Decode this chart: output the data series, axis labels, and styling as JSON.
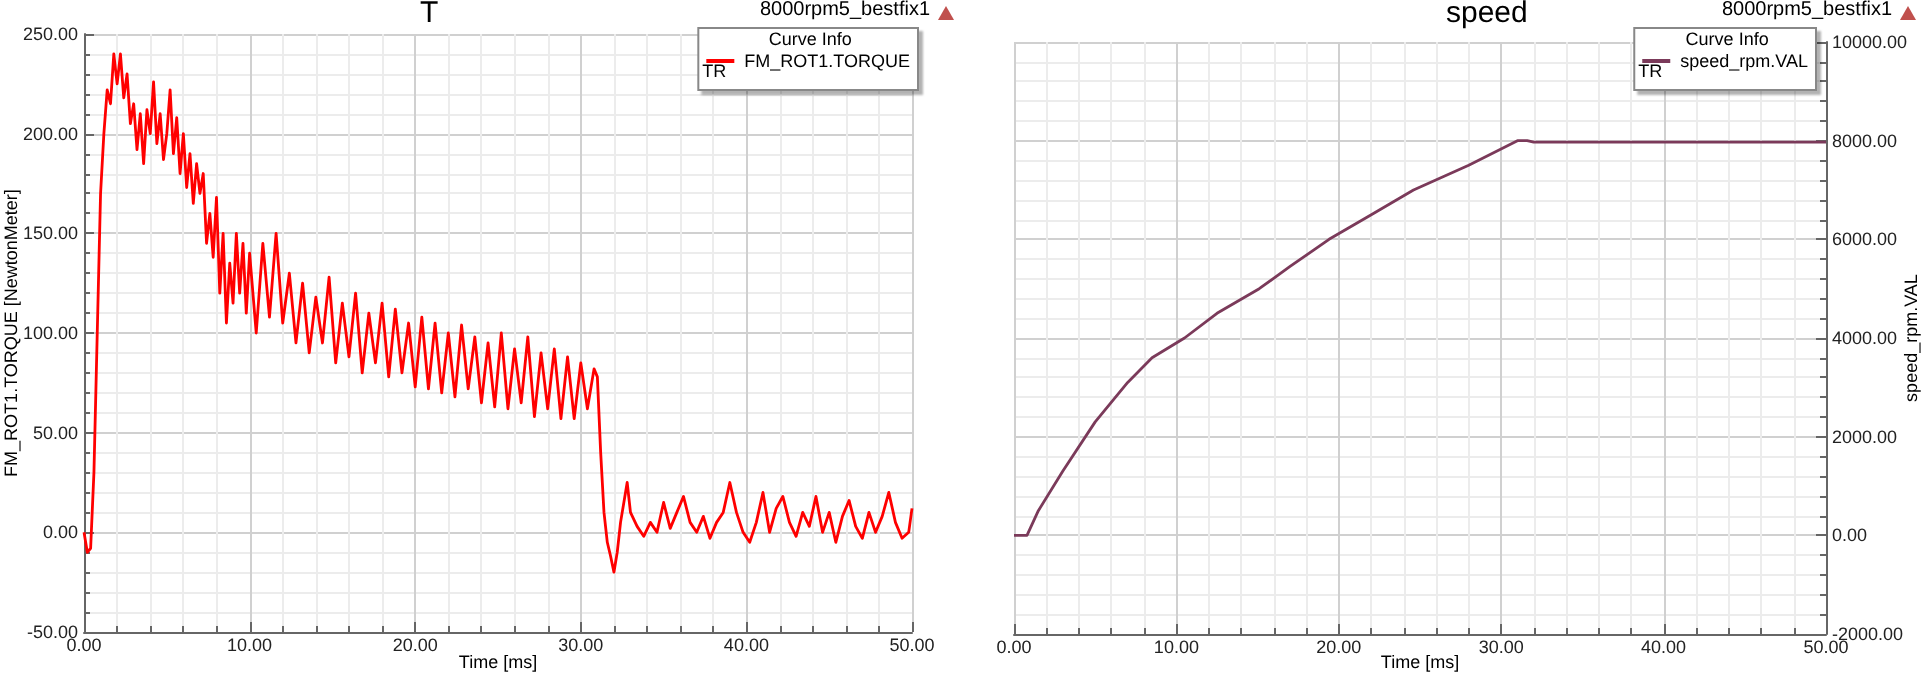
{
  "chart_data": [
    {
      "type": "line",
      "title": "T",
      "subtitle": "8000rpm5_bestfix1",
      "xlabel": "Time [ms]",
      "ylabel": "FM_ROT1.TORQUE [NewtonMeter]",
      "legend_title": "Curve Info",
      "annotations": [
        "TR"
      ],
      "legend": "top right",
      "grid": true,
      "marker": "none",
      "line_style": "solid",
      "xlim": [
        0,
        50
      ],
      "ylim": [
        -50,
        250
      ],
      "xticks": [
        {
          "value": 0,
          "label": "0.00"
        },
        {
          "value": 10,
          "label": "10.00"
        },
        {
          "value": 20,
          "label": "20.00"
        },
        {
          "value": 30,
          "label": "30.00"
        },
        {
          "value": 40,
          "label": "40.00"
        },
        {
          "value": 50,
          "label": "50.00"
        }
      ],
      "yticks": [
        {
          "value": -50,
          "label": "-50.00"
        },
        {
          "value": 0,
          "label": "0.00"
        },
        {
          "value": 50,
          "label": "50.00"
        },
        {
          "value": 100,
          "label": "100.00"
        },
        {
          "value": 150,
          "label": "150.00"
        },
        {
          "value": 200,
          "label": "200.00"
        },
        {
          "value": 250,
          "label": "250.00"
        }
      ],
      "x": [
        0,
        0.2,
        0.4,
        0.6,
        0.8,
        1.0,
        1.2,
        1.4,
        1.6,
        1.8,
        2.0,
        2.2,
        2.4,
        2.6,
        2.8,
        3.0,
        3.2,
        3.4,
        3.6,
        3.8,
        4.0,
        4.2,
        4.4,
        4.6,
        4.8,
        5.0,
        5.2,
        5.4,
        5.6,
        5.8,
        6.0,
        6.2,
        6.4,
        6.6,
        6.8,
        7.0,
        7.2,
        7.4,
        7.6,
        7.8,
        8.0,
        8.2,
        8.4,
        8.6,
        8.8,
        9.0,
        9.2,
        9.4,
        9.6,
        9.8,
        10.0,
        10.4,
        10.8,
        11.2,
        11.6,
        12.0,
        12.4,
        12.8,
        13.2,
        13.6,
        14.0,
        14.4,
        14.8,
        15.2,
        15.6,
        16.0,
        16.4,
        16.8,
        17.2,
        17.6,
        18.0,
        18.4,
        18.8,
        19.2,
        19.6,
        20.0,
        20.4,
        20.8,
        21.2,
        21.6,
        22.0,
        22.4,
        22.8,
        23.2,
        23.6,
        24.0,
        24.4,
        24.8,
        25.2,
        25.6,
        26.0,
        26.4,
        26.8,
        27.2,
        27.6,
        28.0,
        28.4,
        28.8,
        29.2,
        29.6,
        30.0,
        30.4,
        30.8,
        31.0,
        31.2,
        31.4,
        31.6,
        31.8,
        32.0,
        32.2,
        32.4,
        32.6,
        32.8,
        33.0,
        33.4,
        33.8,
        34.2,
        34.6,
        35.0,
        35.4,
        35.8,
        36.2,
        36.6,
        37.0,
        37.4,
        37.8,
        38.2,
        38.6,
        39.0,
        39.4,
        39.8,
        40.2,
        40.6,
        41.0,
        41.4,
        41.8,
        42.2,
        42.6,
        43.0,
        43.4,
        43.8,
        44.2,
        44.6,
        45.0,
        45.4,
        45.8,
        46.2,
        46.6,
        47.0,
        47.4,
        47.8,
        48.2,
        48.6,
        49.0,
        49.4,
        49.8,
        50.0
      ],
      "series": [
        {
          "name": "FM_ROT1.TORQUE",
          "color": "#ff0000",
          "values": [
            0,
            -10,
            -8,
            30,
            100,
            170,
            200,
            222,
            215,
            240,
            225,
            240,
            218,
            230,
            205,
            215,
            192,
            210,
            185,
            212,
            200,
            226,
            195,
            210,
            187,
            200,
            222,
            190,
            208,
            180,
            200,
            173,
            190,
            165,
            185,
            170,
            180,
            145,
            160,
            138,
            168,
            120,
            150,
            105,
            135,
            115,
            150,
            120,
            145,
            110,
            140,
            100,
            145,
            108,
            150,
            105,
            130,
            95,
            125,
            90,
            118,
            95,
            128,
            85,
            115,
            88,
            120,
            80,
            110,
            85,
            115,
            78,
            112,
            80,
            105,
            73,
            108,
            72,
            105,
            70,
            100,
            68,
            104,
            72,
            98,
            65,
            95,
            63,
            100,
            62,
            92,
            65,
            98,
            58,
            90,
            62,
            92,
            57,
            88,
            57,
            85,
            62,
            82,
            78,
            40,
            10,
            -5,
            -12,
            -20,
            -10,
            5,
            15,
            25,
            10,
            3,
            -2,
            5,
            0,
            15,
            2,
            10,
            18,
            5,
            0,
            8,
            -3,
            5,
            10,
            25,
            10,
            0,
            -5,
            5,
            20,
            0,
            12,
            18,
            5,
            -2,
            10,
            3,
            18,
            0,
            10,
            -5,
            8,
            16,
            3,
            -3,
            10,
            0,
            8,
            20,
            5,
            -3,
            0,
            12
          ]
        }
      ]
    },
    {
      "type": "line",
      "title": "speed",
      "subtitle": "8000rpm5_bestfix1",
      "xlabel": "Time [ms]",
      "ylabel": "speed_rpm.VAL",
      "legend_title": "Curve Info",
      "annotations": [
        "TR"
      ],
      "legend": "top right",
      "grid": true,
      "marker": "none",
      "line_style": "solid",
      "xlim": [
        0,
        50
      ],
      "ylim": [
        -2000,
        10000
      ],
      "xticks": [
        {
          "value": 0,
          "label": "0.00"
        },
        {
          "value": 10,
          "label": "10.00"
        },
        {
          "value": 20,
          "label": "20.00"
        },
        {
          "value": 30,
          "label": "30.00"
        },
        {
          "value": 40,
          "label": "40.00"
        },
        {
          "value": 50,
          "label": "50.00"
        }
      ],
      "yticks": [
        {
          "value": -2000,
          "label": "-2000.00"
        },
        {
          "value": 0,
          "label": "0.00"
        },
        {
          "value": 2000,
          "label": "2000.00"
        },
        {
          "value": 4000,
          "label": "4000.00"
        },
        {
          "value": 6000,
          "label": "6000.00"
        },
        {
          "value": 8000,
          "label": "8000.00"
        },
        {
          "value": 10000,
          "label": "10000.00"
        }
      ],
      "x": [
        0,
        0.8,
        1.5,
        3,
        5,
        7,
        8.5,
        10.5,
        12.5,
        15.1,
        17,
        19.4,
        22,
        24.6,
        28,
        31,
        31.6,
        32,
        50
      ],
      "series": [
        {
          "name": "speed_rpm.VAL",
          "color": "#7b3a5a",
          "values": [
            0,
            0,
            500,
            1300,
            2300,
            3100,
            3600,
            4000,
            4500,
            5000,
            5450,
            6000,
            6500,
            7000,
            7500,
            8000,
            8000,
            7970,
            7970
          ]
        }
      ]
    }
  ]
}
